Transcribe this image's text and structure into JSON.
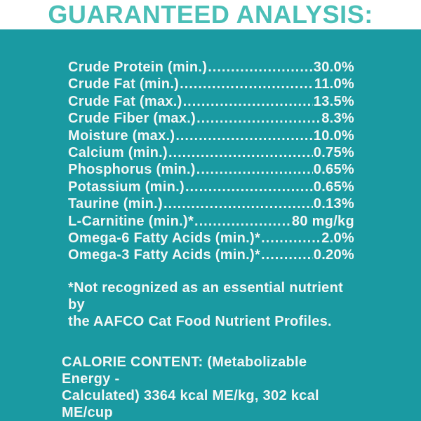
{
  "title": "GUARANTEED ANALYSIS:",
  "analysis_rows": [
    {
      "label": "Crude Protein (min.)",
      "value": "30.0%"
    },
    {
      "label": "Crude Fat (min.)",
      "value": "11.0%"
    },
    {
      "label": "Crude Fat (max.)",
      "value": "13.5%"
    },
    {
      "label": "Crude Fiber (max.)",
      "value": "8.3%"
    },
    {
      "label": "Moisture (max.)",
      "value": "10.0%"
    },
    {
      "label": "Calcium (min.)",
      "value": "0.75%"
    },
    {
      "label": "Phosphorus (min.)",
      "value": "0.65%"
    },
    {
      "label": "Potassium (min.)",
      "value": "0.65%"
    },
    {
      "label": "Taurine (min.)",
      "value": "0.13%"
    },
    {
      "label": "L-Carnitine (min.)*",
      "value": "80 mg/kg"
    },
    {
      "label": "Omega-6 Fatty Acids (min.)*",
      "value": "2.0%"
    },
    {
      "label": "Omega-3 Fatty Acids (min.)*",
      "value": "0.20%"
    }
  ],
  "footnote_lines": [
    "*Not recognized as an essential nutrient by",
    "the AAFCO Cat Food Nutrient Profiles."
  ],
  "calorie_lines": [
    "CALORIE CONTENT: (Metabolizable Energy -",
    "Calculated) 3364 kcal ME/kg, 302 kcal ME/cup"
  ],
  "colors": {
    "panel_teal": "#1A9AA2",
    "title_teal": "#4BBFB7",
    "text": "#F4F7F6",
    "header_background": "#FFFFFF"
  }
}
